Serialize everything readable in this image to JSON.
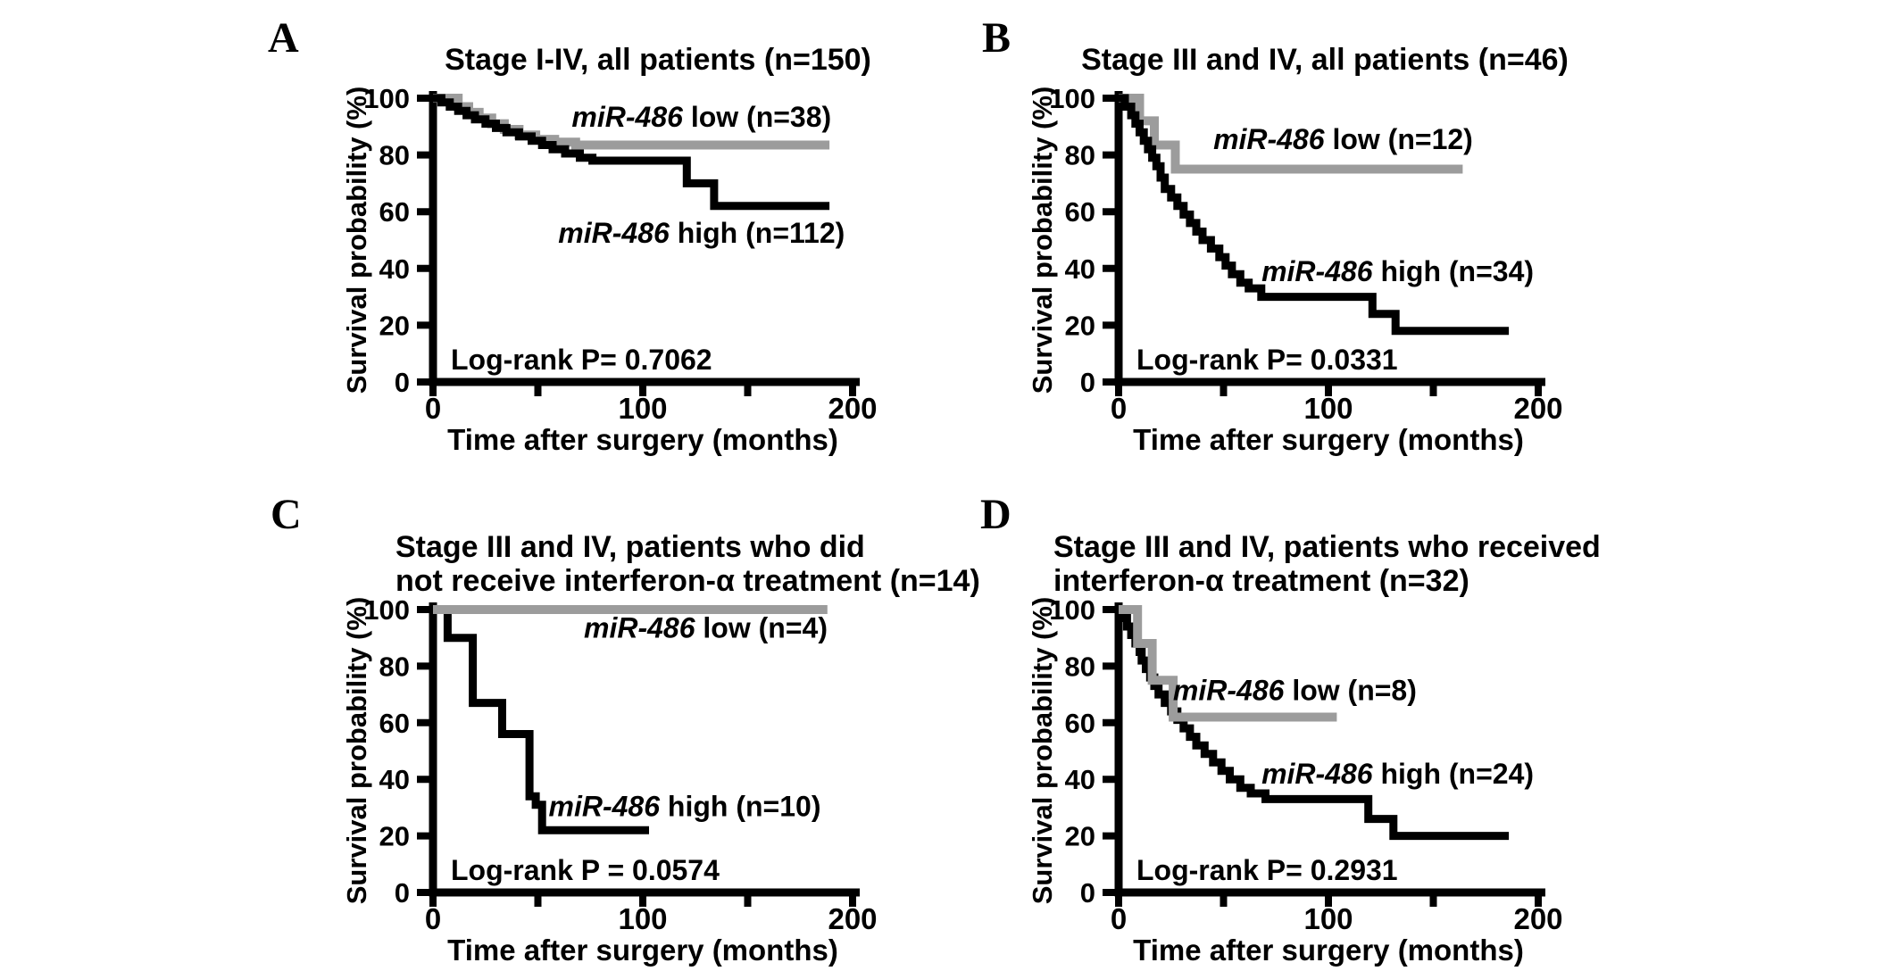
{
  "figure": {
    "description": "Kaplan-Meier survival curves, four panels",
    "background": "#ffffff",
    "colors": {
      "black": "#000000",
      "gray": "#9c9c9c"
    }
  },
  "chart_data": [
    {
      "type": "line",
      "panel_letter": "A",
      "title_lines": [
        "Stage I-IV, all patients (n=150)"
      ],
      "xlabel": "Time after surgery (months)",
      "ylabel": "Survival probability (%)",
      "xlim": [
        0,
        200
      ],
      "ylim": [
        0,
        100
      ],
      "x_ticks": [
        0,
        100,
        200
      ],
      "x_all_ticks": [
        0,
        50,
        100,
        150,
        200
      ],
      "y_ticks": [
        0,
        20,
        40,
        60,
        80,
        100
      ],
      "grid": false,
      "logrank_label": "Log-rank  P= 0.7062",
      "series": [
        {
          "name": "miR-486 low",
          "label_italic": "miR-486",
          "label_rest": " low (n=38)",
          "color": "#9c9c9c",
          "stroke_width": 10,
          "label_pos": [
            128,
            90
          ],
          "points": [
            [
              0,
              100
            ],
            [
              12,
              97
            ],
            [
              17,
              95
            ],
            [
              22,
              93
            ],
            [
              28,
              91
            ],
            [
              34,
              89
            ],
            [
              41,
              87
            ],
            [
              49,
              85.5
            ],
            [
              58,
              84.5
            ],
            [
              68,
              83.5
            ],
            [
              189,
              83.5
            ]
          ]
        },
        {
          "name": "miR-486 high",
          "label_italic": "miR-486",
          "label_rest": " high (n=112)",
          "color": "#000000",
          "stroke_width": 9,
          "label_pos": [
            128,
            49
          ],
          "points": [
            [
              0,
              100
            ],
            [
              4,
              98.5
            ],
            [
              8,
              97
            ],
            [
              12,
              95.5
            ],
            [
              16,
              94
            ],
            [
              20,
              92.5
            ],
            [
              25,
              91
            ],
            [
              30,
              89.5
            ],
            [
              35,
              88
            ],
            [
              41,
              86.5
            ],
            [
              47,
              85
            ],
            [
              52,
              83.5
            ],
            [
              57,
              82
            ],
            [
              63,
              80.5
            ],
            [
              70,
              79
            ],
            [
              76,
              78
            ],
            [
              121,
              70
            ],
            [
              134,
              62
            ],
            [
              189,
              62
            ]
          ]
        }
      ]
    },
    {
      "type": "line",
      "panel_letter": "B",
      "title_lines": [
        "Stage III and IV, all patients (n=46)"
      ],
      "xlabel": "Time after surgery (months)",
      "ylabel": "Survival probability (%)",
      "xlim": [
        0,
        200
      ],
      "ylim": [
        0,
        100
      ],
      "x_ticks": [
        0,
        100,
        200
      ],
      "x_all_ticks": [
        0,
        50,
        100,
        150,
        200
      ],
      "y_ticks": [
        0,
        20,
        40,
        60,
        80,
        100
      ],
      "grid": false,
      "logrank_label": "Log-rank  P= 0.0331",
      "series": [
        {
          "name": "miR-486 low",
          "label_italic": "miR-486",
          "label_rest": " low (n=12)",
          "color": "#9c9c9c",
          "stroke_width": 10,
          "label_pos": [
            107,
            82
          ],
          "points": [
            [
              0,
              100
            ],
            [
              10,
              92
            ],
            [
              17,
              83.5
            ],
            [
              27,
              75
            ],
            [
              164,
              75
            ]
          ]
        },
        {
          "name": "miR-486 high",
          "label_italic": "miR-486",
          "label_rest": " high (n=34)",
          "color": "#000000",
          "stroke_width": 9,
          "label_pos": [
            133,
            35.5
          ],
          "points": [
            [
              0,
              100
            ],
            [
              3,
              97
            ],
            [
              6,
              94
            ],
            [
              8,
              91
            ],
            [
              10,
              88
            ],
            [
              12,
              85
            ],
            [
              14,
              82
            ],
            [
              16,
              79
            ],
            [
              18,
              76
            ],
            [
              20,
              72
            ],
            [
              22,
              68
            ],
            [
              25,
              65
            ],
            [
              28,
              62
            ],
            [
              31,
              59
            ],
            [
              34,
              56
            ],
            [
              37,
              53
            ],
            [
              40,
              50
            ],
            [
              44,
              47
            ],
            [
              48,
              44
            ],
            [
              51,
              41
            ],
            [
              54,
              38
            ],
            [
              58,
              35
            ],
            [
              62,
              33
            ],
            [
              68,
              30
            ],
            [
              121,
              24
            ],
            [
              132,
              18
            ],
            [
              186,
              18
            ]
          ]
        }
      ]
    },
    {
      "type": "line",
      "panel_letter": "C",
      "title_lines": [
        "Stage III and IV, patients who did",
        "not receive interferon-α treatment (n=14)"
      ],
      "xlabel": "Time after surgery (months)",
      "ylabel": "Survival probability (%)",
      "xlim": [
        0,
        200
      ],
      "ylim": [
        0,
        100
      ],
      "x_ticks": [
        0,
        100,
        200
      ],
      "x_all_ticks": [
        0,
        50,
        100,
        150,
        200
      ],
      "y_ticks": [
        0,
        20,
        40,
        60,
        80,
        100
      ],
      "grid": false,
      "logrank_label": "Log-rank P = 0.0574",
      "series": [
        {
          "name": "miR-486 high",
          "label_italic": "miR-486",
          "label_rest": " high (n=10)",
          "color": "#000000",
          "stroke_width": 9,
          "label_pos": [
            120,
            27
          ],
          "points": [
            [
              0,
              100
            ],
            [
              7,
              90
            ],
            [
              19,
              67
            ],
            [
              33,
              56
            ],
            [
              46,
              34
            ],
            [
              49,
              31
            ],
            [
              52,
              22
            ],
            [
              103,
              22
            ]
          ]
        },
        {
          "name": "miR-486 low",
          "label_italic": "miR-486",
          "label_rest": " low (n=4)",
          "color": "#9c9c9c",
          "stroke_width": 10,
          "label_pos": [
            130,
            90
          ],
          "points": [
            [
              0,
              100
            ],
            [
              188,
              100
            ]
          ]
        }
      ]
    },
    {
      "type": "line",
      "panel_letter": "D",
      "title_lines": [
        "Stage III and IV, patients who received",
        "interferon-α treatment (n=32)"
      ],
      "xlabel": "Time after surgery (months)",
      "ylabel": "Survival probability (%)",
      "xlim": [
        0,
        200
      ],
      "ylim": [
        0,
        100
      ],
      "x_ticks": [
        0,
        100,
        200
      ],
      "x_all_ticks": [
        0,
        50,
        100,
        150,
        200
      ],
      "y_ticks": [
        0,
        20,
        40,
        60,
        80,
        100
      ],
      "grid": false,
      "logrank_label": "Log-rank  P= 0.2931",
      "series": [
        {
          "name": "miR-486 high",
          "label_italic": "miR-486",
          "label_rest": " high (n=24)",
          "color": "#000000",
          "stroke_width": 9,
          "label_pos": [
            133,
            38.5
          ],
          "points": [
            [
              0,
              100
            ],
            [
              2,
              97
            ],
            [
              4,
              94
            ],
            [
              6,
              91
            ],
            [
              8,
              88
            ],
            [
              10,
              85
            ],
            [
              11,
              82
            ],
            [
              13,
              79
            ],
            [
              15,
              76
            ],
            [
              17,
              73
            ],
            [
              19,
              70
            ],
            [
              22,
              67
            ],
            [
              25,
              64
            ],
            [
              28,
              61
            ],
            [
              31,
              58
            ],
            [
              34,
              55
            ],
            [
              37,
              52
            ],
            [
              41,
              49
            ],
            [
              45,
              46
            ],
            [
              49,
              43
            ],
            [
              53,
              40
            ],
            [
              58,
              37
            ],
            [
              63,
              35
            ],
            [
              70,
              33
            ],
            [
              119,
              26
            ],
            [
              131,
              20
            ],
            [
              186,
              20
            ]
          ]
        },
        {
          "name": "miR-486 low",
          "label_italic": "miR-486",
          "label_rest": " low (n=8)",
          "color": "#9c9c9c",
          "stroke_width": 10,
          "label_pos": [
            84,
            68
          ],
          "points": [
            [
              0,
              100
            ],
            [
              9,
              88
            ],
            [
              16,
              75
            ],
            [
              26,
              62
            ],
            [
              104,
              62
            ]
          ]
        }
      ]
    }
  ]
}
